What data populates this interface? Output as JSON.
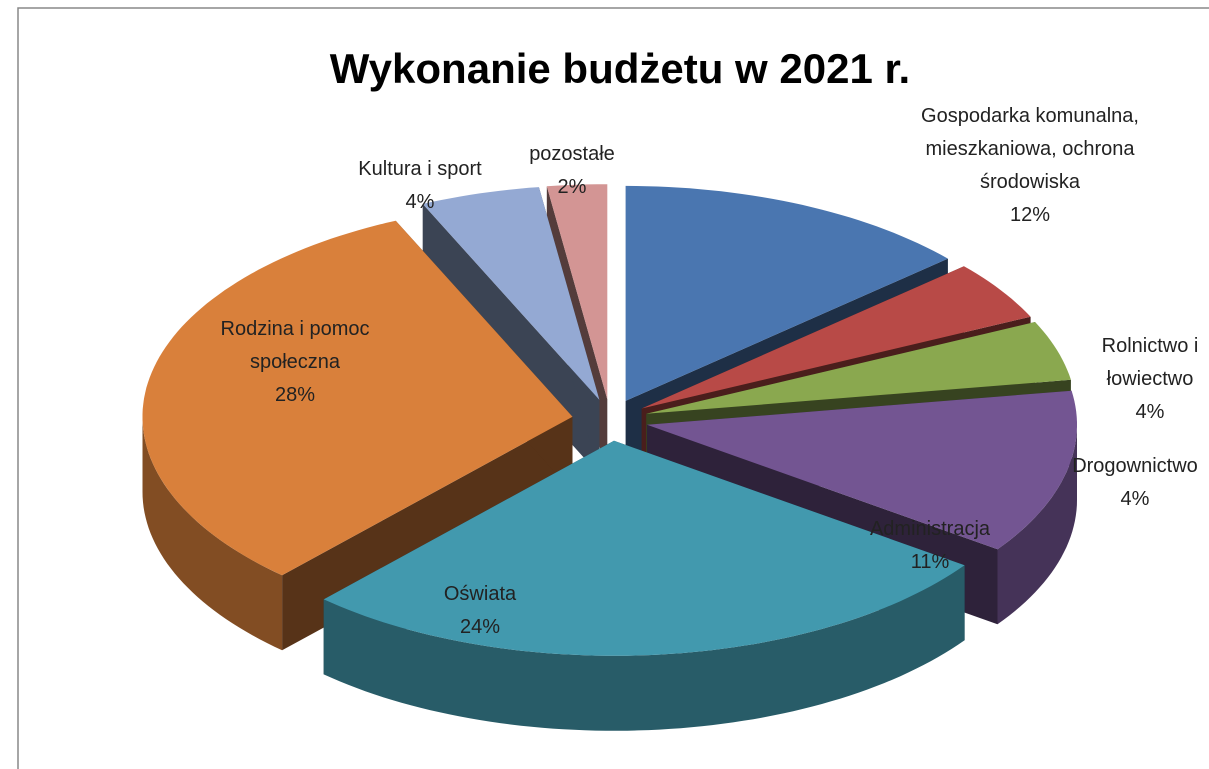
{
  "chart_data": {
    "type": "pie3d",
    "title": "Wykonanie budżetu w 2021 r.",
    "categories": [
      "Gospodarka komunalna, mieszkaniowa, ochrona środowiska",
      "Rolnictwo i łowiectwo",
      "Drogownictwo",
      "Administracja",
      "Oświata",
      "Rodzina i pomoc społeczna",
      "Kultura i sport",
      "pozostałe"
    ],
    "values": [
      12,
      4,
      4,
      11,
      24,
      28,
      4,
      2
    ],
    "value_labels": [
      "12%",
      "4%",
      "4%",
      "11%",
      "24%",
      "28%",
      "4%",
      "2%"
    ],
    "colors": [
      "#4a76b0",
      "#b84a47",
      "#8aa84f",
      "#735592",
      "#4299ae",
      "#d9803b",
      "#94a9d3",
      "#d39594"
    ]
  }
}
